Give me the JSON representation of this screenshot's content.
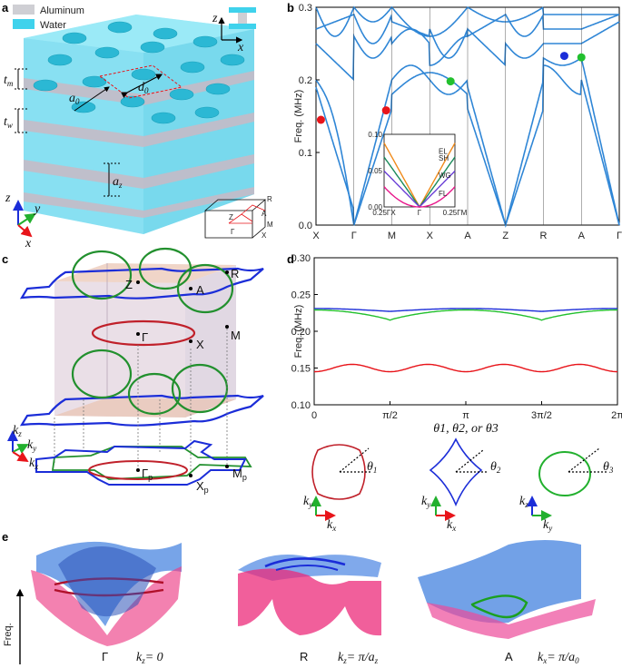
{
  "panels": {
    "a": "a",
    "b": "b",
    "c": "c",
    "d": "d",
    "e": "e"
  },
  "legend": {
    "aluminum": "Aluminum",
    "water": "Water",
    "aluminum_color": "#cfcfd4",
    "water_color": "#3fd2ec"
  },
  "panel_a": {
    "t_m": "t",
    "t_m_sub": "m",
    "t_w": "t",
    "t_w_sub": "w",
    "a0": "a",
    "a0_sub": "0",
    "d0": "d",
    "d0_sub": "0",
    "az": "a",
    "az_sub": "z",
    "axis_z": "z",
    "axis_y": "y",
    "axis_x": "x",
    "inset_z": "z",
    "inset_x": "x"
  },
  "bz": {
    "labels": [
      "Z",
      "R",
      "A",
      "M",
      "X",
      "Γ"
    ]
  },
  "chart_data": [
    {
      "id": "b",
      "type": "line",
      "title": "",
      "xlabel": "",
      "ylabel": "Freq. (MHz)",
      "ylim": [
        0,
        0.3
      ],
      "yticks": [
        "0.0",
        "0.1",
        "0.2",
        "0.3"
      ],
      "xticks": [
        "X",
        "Γ",
        "M",
        "X",
        "A",
        "Z",
        "R",
        "A",
        "Γ"
      ],
      "line_color": "#2f86d6",
      "markers": [
        {
          "k": 0.13,
          "f": 0.145,
          "color": "#e8141a"
        },
        {
          "k": 1.85,
          "f": 0.158,
          "color": "#e8141a"
        },
        {
          "k": 3.55,
          "f": 0.198,
          "color": "#22c02e"
        },
        {
          "k": 6.55,
          "f": 0.233,
          "color": "#1b2dd8"
        },
        {
          "k": 7.0,
          "f": 0.231,
          "color": "#22c02e"
        }
      ],
      "inset": {
        "ylim": [
          0,
          0.1
        ],
        "yticks": [
          "0.00",
          "0.05",
          "0.10"
        ],
        "xticks": [
          "0.25ΓX",
          "Γ",
          "0.25ΓM"
        ],
        "series": [
          {
            "name": "EL",
            "color": "#f08a1a"
          },
          {
            "name": "SH",
            "color": "#1a8a5a"
          },
          {
            "name": "WG",
            "color": "#6a3fd6"
          },
          {
            "name": "FL",
            "color": "#e8168a"
          }
        ]
      }
    },
    {
      "id": "d",
      "type": "line",
      "title": "",
      "xlabel": "θ1, θ2, or θ3",
      "ylabel": "Freq. (MHz)",
      "ylim": [
        0.1,
        0.3
      ],
      "yticks": [
        "0.10",
        "0.15",
        "0.20",
        "0.25",
        "0.30"
      ],
      "xticks": [
        "0",
        "π/2",
        "π",
        "3π/2",
        "2π"
      ],
      "series": [
        {
          "name": "blue",
          "color": "#1b2dd8",
          "mean": 0.227,
          "amp": 0.004
        },
        {
          "name": "green",
          "color": "#22c02e",
          "mean": 0.215,
          "amp": 0.014
        },
        {
          "name": "red",
          "color": "#e8141a",
          "mean": 0.15,
          "amp": 0.005
        }
      ]
    }
  ],
  "panel_c": {
    "labels": [
      "R",
      "Z",
      "A",
      "Γ",
      "X",
      "M",
      "Γ",
      "X",
      "M"
    ],
    "subs": [
      "p",
      "p",
      "p"
    ],
    "kz": "k",
    "kz_sub": "z",
    "ky": "k",
    "ky_sub": "y",
    "kx": "k",
    "kx_sub": "x"
  },
  "panel_d_insets": {
    "theta1": "θ",
    "theta2": "θ",
    "theta3": "θ",
    "sub1": "1",
    "sub2": "2",
    "sub3": "3",
    "ky": "k",
    "kx": "k",
    "kz": "k"
  },
  "panel_e": {
    "freq": "Freq.",
    "pts": [
      "Γ",
      "R",
      "A"
    ],
    "kz0": "k",
    "kz0_sub": "z",
    "kz0_val": "= 0",
    "kzpi": "k",
    "kzpi_sub": "z",
    "kzpi_val": "= π/a",
    "kzpi_vsub": "z",
    "kxpi": "k",
    "kxpi_sub": "x",
    "kxpi_val": "= π/a",
    "kxpi_vsub": "0"
  }
}
